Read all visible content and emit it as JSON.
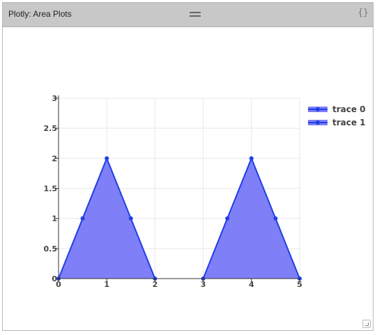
{
  "window": {
    "title": "Plotly: Area Plots",
    "code_toggle": "{}"
  },
  "chart_data": {
    "type": "area",
    "title": "",
    "xlabel": "",
    "ylabel": "",
    "xlim": [
      0,
      5
    ],
    "ylim": [
      0,
      3
    ],
    "grid": true,
    "legend_position": "top-right",
    "x_ticks": [
      "0",
      "1",
      "2",
      "3",
      "4",
      "5"
    ],
    "y_ticks": [
      "0",
      "0.5",
      "1",
      "1.5",
      "2",
      "2.5",
      "3"
    ],
    "series": [
      {
        "name": "trace 0",
        "x": [
          0,
          0.5,
          1,
          1.5,
          2
        ],
        "y": [
          0,
          1,
          2,
          1,
          0
        ]
      },
      {
        "name": "trace 1",
        "x": [
          3,
          3.5,
          4,
          4.5,
          5
        ],
        "y": [
          0,
          1,
          2,
          1,
          0
        ]
      }
    ],
    "colors": {
      "line": "#1f3fe6",
      "fill": "#7f7ff7"
    }
  }
}
